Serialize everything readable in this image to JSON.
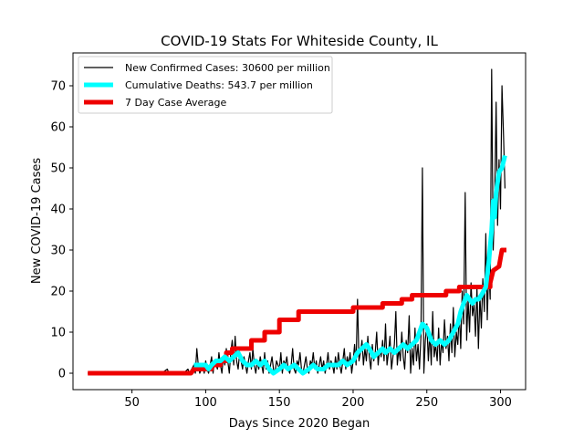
{
  "chart_data": {
    "type": "line",
    "title": "COVID-19 Stats For Whiteside County, IL",
    "xlabel": "Days Since 2020 Began",
    "ylabel": "New COVID-19 Cases",
    "xlim": [
      10,
      317
    ],
    "ylim": [
      -4,
      78
    ],
    "xticks": [
      50,
      100,
      150,
      200,
      250,
      300
    ],
    "yticks": [
      0,
      10,
      20,
      30,
      40,
      50,
      60,
      70
    ],
    "grid": false,
    "legend_position": "top-left",
    "series": [
      {
        "name": "New Confirmed Cases: 30600 per million",
        "color": "#000000",
        "points": [
          [
            20,
            0
          ],
          [
            40,
            0
          ],
          [
            60,
            0
          ],
          [
            70,
            0
          ],
          [
            74,
            1
          ],
          [
            75,
            0
          ],
          [
            85,
            0
          ],
          [
            88,
            1
          ],
          [
            89,
            0
          ],
          [
            92,
            2
          ],
          [
            93,
            0
          ],
          [
            94,
            6
          ],
          [
            95,
            2
          ],
          [
            96,
            0
          ],
          [
            97,
            1
          ],
          [
            98,
            2
          ],
          [
            99,
            0
          ],
          [
            100,
            3
          ],
          [
            101,
            1
          ],
          [
            102,
            0
          ],
          [
            103,
            2
          ],
          [
            104,
            4
          ],
          [
            105,
            0
          ],
          [
            106,
            3
          ],
          [
            107,
            2
          ],
          [
            108,
            1
          ],
          [
            109,
            5
          ],
          [
            110,
            2
          ],
          [
            111,
            0
          ],
          [
            112,
            4
          ],
          [
            113,
            2
          ],
          [
            114,
            6
          ],
          [
            115,
            3
          ],
          [
            116,
            0
          ],
          [
            117,
            5
          ],
          [
            118,
            8
          ],
          [
            119,
            2
          ],
          [
            120,
            9
          ],
          [
            121,
            3
          ],
          [
            122,
            1
          ],
          [
            123,
            5
          ],
          [
            124,
            3
          ],
          [
            125,
            1
          ],
          [
            126,
            4
          ],
          [
            127,
            2
          ],
          [
            128,
            0
          ],
          [
            129,
            3
          ],
          [
            130,
            5
          ],
          [
            131,
            1
          ],
          [
            132,
            6
          ],
          [
            133,
            2
          ],
          [
            134,
            0
          ],
          [
            135,
            3
          ],
          [
            136,
            1
          ],
          [
            137,
            4
          ],
          [
            138,
            2
          ],
          [
            139,
            0
          ],
          [
            140,
            5
          ],
          [
            141,
            1
          ],
          [
            142,
            3
          ],
          [
            143,
            0
          ],
          [
            144,
            2
          ],
          [
            145,
            4
          ],
          [
            146,
            1
          ],
          [
            147,
            0
          ],
          [
            148,
            3
          ],
          [
            149,
            2
          ],
          [
            150,
            1
          ],
          [
            151,
            5
          ],
          [
            152,
            0
          ],
          [
            153,
            3
          ],
          [
            154,
            2
          ],
          [
            155,
            4
          ],
          [
            156,
            1
          ],
          [
            157,
            0
          ],
          [
            158,
            2
          ],
          [
            159,
            6
          ],
          [
            160,
            1
          ],
          [
            161,
            0
          ],
          [
            162,
            3
          ],
          [
            163,
            2
          ],
          [
            164,
            5
          ],
          [
            165,
            1
          ],
          [
            166,
            0
          ],
          [
            167,
            2
          ],
          [
            168,
            4
          ],
          [
            169,
            1
          ],
          [
            170,
            0
          ],
          [
            171,
            3
          ],
          [
            172,
            2
          ],
          [
            173,
            5
          ],
          [
            174,
            1
          ],
          [
            175,
            3
          ],
          [
            176,
            0
          ],
          [
            177,
            2
          ],
          [
            178,
            4
          ],
          [
            179,
            1
          ],
          [
            180,
            3
          ],
          [
            181,
            0
          ],
          [
            182,
            2
          ],
          [
            183,
            5
          ],
          [
            184,
            1
          ],
          [
            185,
            3
          ],
          [
            186,
            2
          ],
          [
            187,
            0
          ],
          [
            188,
            4
          ],
          [
            189,
            1
          ],
          [
            190,
            5
          ],
          [
            191,
            2
          ],
          [
            192,
            0
          ],
          [
            193,
            3
          ],
          [
            194,
            6
          ],
          [
            195,
            1
          ],
          [
            196,
            4
          ],
          [
            197,
            2
          ],
          [
            198,
            5
          ],
          [
            199,
            0
          ],
          [
            200,
            3
          ],
          [
            201,
            7
          ],
          [
            202,
            2
          ],
          [
            203,
            18
          ],
          [
            204,
            3
          ],
          [
            205,
            5
          ],
          [
            206,
            8
          ],
          [
            207,
            2
          ],
          [
            208,
            6
          ],
          [
            209,
            3
          ],
          [
            210,
            9
          ],
          [
            211,
            4
          ],
          [
            212,
            1
          ],
          [
            213,
            7
          ],
          [
            214,
            3
          ],
          [
            215,
            5
          ],
          [
            216,
            10
          ],
          [
            217,
            2
          ],
          [
            218,
            6
          ],
          [
            219,
            4
          ],
          [
            220,
            8
          ],
          [
            221,
            3
          ],
          [
            222,
            12
          ],
          [
            223,
            2
          ],
          [
            224,
            5
          ],
          [
            225,
            9
          ],
          [
            226,
            1
          ],
          [
            227,
            4
          ],
          [
            228,
            7
          ],
          [
            229,
            15
          ],
          [
            230,
            2
          ],
          [
            231,
            6
          ],
          [
            232,
            3
          ],
          [
            233,
            10
          ],
          [
            234,
            4
          ],
          [
            235,
            1
          ],
          [
            236,
            8
          ],
          [
            237,
            5
          ],
          [
            238,
            14
          ],
          [
            239,
            0
          ],
          [
            240,
            6
          ],
          [
            241,
            2
          ],
          [
            242,
            11
          ],
          [
            243,
            3
          ],
          [
            244,
            7
          ],
          [
            245,
            1
          ],
          [
            246,
            9
          ],
          [
            247,
            50
          ],
          [
            248,
            0
          ],
          [
            249,
            8
          ],
          [
            250,
            12
          ],
          [
            251,
            3
          ],
          [
            252,
            10
          ],
          [
            253,
            2
          ],
          [
            254,
            15
          ],
          [
            255,
            4
          ],
          [
            256,
            7
          ],
          [
            257,
            3
          ],
          [
            258,
            11
          ],
          [
            259,
            2
          ],
          [
            260,
            8
          ],
          [
            261,
            5
          ],
          [
            262,
            13
          ],
          [
            263,
            6
          ],
          [
            264,
            9
          ],
          [
            265,
            3
          ],
          [
            266,
            12
          ],
          [
            267,
            5
          ],
          [
            268,
            16
          ],
          [
            269,
            4
          ],
          [
            270,
            10
          ],
          [
            271,
            7
          ],
          [
            272,
            15
          ],
          [
            273,
            6
          ],
          [
            274,
            20
          ],
          [
            275,
            12
          ],
          [
            276,
            44
          ],
          [
            277,
            8
          ],
          [
            278,
            18
          ],
          [
            279,
            10
          ],
          [
            280,
            22
          ],
          [
            281,
            14
          ],
          [
            282,
            17
          ],
          [
            283,
            9
          ],
          [
            284,
            21
          ],
          [
            285,
            6
          ],
          [
            286,
            19
          ],
          [
            287,
            11
          ],
          [
            288,
            23
          ],
          [
            289,
            15
          ],
          [
            290,
            34
          ],
          [
            291,
            13
          ],
          [
            292,
            26
          ],
          [
            293,
            18
          ],
          [
            294,
            74
          ],
          [
            295,
            30
          ],
          [
            296,
            42
          ],
          [
            297,
            66
          ],
          [
            298,
            36
          ],
          [
            299,
            52
          ],
          [
            300,
            40
          ],
          [
            301,
            70
          ],
          [
            302,
            58
          ],
          [
            303,
            45
          ]
        ]
      },
      {
        "name": "Cumulative Deaths: 543.7 per million",
        "color": "#00ffff",
        "points": [
          [
            92,
            2
          ],
          [
            100,
            2
          ],
          [
            102,
            1
          ],
          [
            104,
            2
          ],
          [
            107,
            3
          ],
          [
            110,
            3
          ],
          [
            113,
            4
          ],
          [
            116,
            3
          ],
          [
            119,
            4
          ],
          [
            122,
            5
          ],
          [
            125,
            3
          ],
          [
            128,
            2
          ],
          [
            131,
            2
          ],
          [
            134,
            3
          ],
          [
            137,
            2
          ],
          [
            140,
            3
          ],
          [
            143,
            1
          ],
          [
            146,
            0
          ],
          [
            150,
            1
          ],
          [
            153,
            2
          ],
          [
            156,
            1
          ],
          [
            160,
            2
          ],
          [
            163,
            1
          ],
          [
            166,
            0
          ],
          [
            170,
            1
          ],
          [
            173,
            2
          ],
          [
            176,
            1
          ],
          [
            180,
            1
          ],
          [
            183,
            2
          ],
          [
            186,
            2
          ],
          [
            190,
            2
          ],
          [
            193,
            3
          ],
          [
            196,
            2
          ],
          [
            200,
            3
          ],
          [
            203,
            5
          ],
          [
            206,
            6
          ],
          [
            209,
            7
          ],
          [
            211,
            6
          ],
          [
            214,
            4
          ],
          [
            217,
            5
          ],
          [
            220,
            6
          ],
          [
            222,
            5
          ],
          [
            225,
            6
          ],
          [
            228,
            5
          ],
          [
            231,
            6
          ],
          [
            234,
            7
          ],
          [
            237,
            6
          ],
          [
            240,
            7
          ],
          [
            243,
            8
          ],
          [
            245,
            10
          ],
          [
            247,
            12
          ],
          [
            250,
            11
          ],
          [
            253,
            8
          ],
          [
            256,
            7
          ],
          [
            259,
            8
          ],
          [
            262,
            7
          ],
          [
            265,
            8
          ],
          [
            268,
            10
          ],
          [
            271,
            12
          ],
          [
            273,
            15
          ],
          [
            275,
            17
          ],
          [
            277,
            19
          ],
          [
            279,
            18
          ],
          [
            281,
            17
          ],
          [
            283,
            18
          ],
          [
            285,
            18
          ],
          [
            287,
            19
          ],
          [
            290,
            21
          ],
          [
            292,
            27
          ],
          [
            294,
            35
          ],
          [
            295,
            42
          ],
          [
            296,
            38
          ],
          [
            297,
            44
          ],
          [
            299,
            49
          ],
          [
            301,
            50
          ],
          [
            303,
            53
          ]
        ]
      },
      {
        "name": "7 Day Case Average",
        "color": "#ee0000",
        "points": [
          [
            20,
            0
          ],
          [
            90,
            0
          ],
          [
            92,
            1
          ],
          [
            104,
            1
          ],
          [
            104,
            2
          ],
          [
            110,
            2
          ],
          [
            110,
            3
          ],
          [
            114,
            3
          ],
          [
            114,
            5
          ],
          [
            118,
            5
          ],
          [
            118,
            6
          ],
          [
            131,
            6
          ],
          [
            131,
            8
          ],
          [
            140,
            8
          ],
          [
            140,
            10
          ],
          [
            150,
            10
          ],
          [
            150,
            13
          ],
          [
            163,
            13
          ],
          [
            163,
            15
          ],
          [
            178,
            15
          ],
          [
            178,
            15
          ],
          [
            200,
            15
          ],
          [
            200,
            16
          ],
          [
            220,
            16
          ],
          [
            220,
            17
          ],
          [
            233,
            17
          ],
          [
            233,
            18
          ],
          [
            240,
            18
          ],
          [
            240,
            19
          ],
          [
            263,
            19
          ],
          [
            263,
            20
          ],
          [
            272,
            20
          ],
          [
            272,
            21
          ],
          [
            293,
            21
          ],
          [
            293,
            22
          ],
          [
            295,
            25
          ],
          [
            299,
            26
          ],
          [
            300,
            28
          ],
          [
            301,
            30
          ],
          [
            304,
            30
          ]
        ]
      }
    ]
  }
}
